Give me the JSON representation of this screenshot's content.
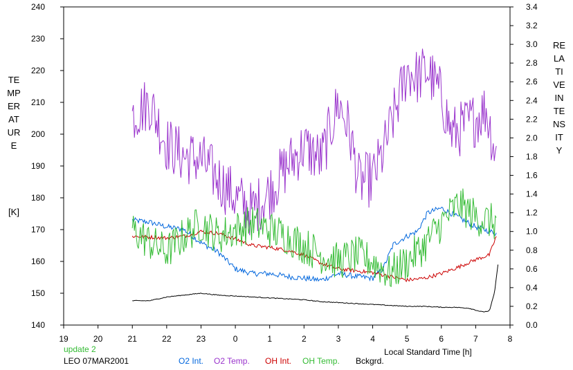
{
  "chart_data": {
    "type": "line",
    "xlabel": "Local Standard Time [h]",
    "x_ticks": [
      "19",
      "20",
      "21",
      "22",
      "23",
      "0",
      "1",
      "2",
      "3",
      "4",
      "5",
      "6",
      "7",
      "8"
    ],
    "xlim": [
      19,
      32
    ],
    "left_axis": {
      "label": "TEMPERATURE",
      "unit": "[K]",
      "lim": [
        140,
        240
      ],
      "ticks": [
        "140",
        "150",
        "160",
        "170",
        "180",
        "190",
        "200",
        "210",
        "220",
        "230",
        "240"
      ]
    },
    "right_axis": {
      "label": "RELATIVE INTENSITY",
      "lim": [
        0.0,
        3.4
      ],
      "ticks": [
        "0.0",
        "0.2",
        "0.4",
        "0.6",
        "0.8",
        "1.0",
        "1.2",
        "1.4",
        "1.6",
        "1.8",
        "2.0",
        "2.2",
        "2.4",
        "2.6",
        "2.8",
        "3.0",
        "3.2",
        "3.4"
      ]
    },
    "grid": false,
    "legend_position": "bottom",
    "status_text": "update 2",
    "station_text": "LEO 07MAR2001",
    "series": [
      {
        "name": "O2 Int.",
        "axis": "right",
        "color": "#0066dd",
        "noise": 0.03,
        "x": [
          21.0,
          21.5,
          22.0,
          22.5,
          23.0,
          23.5,
          24.0,
          24.5,
          25.0,
          25.5,
          26.0,
          26.5,
          27.0,
          27.5,
          28.0,
          28.3,
          28.6,
          29.0,
          29.3,
          29.6,
          30.0,
          30.5,
          31.0,
          31.6
        ],
        "y": [
          1.12,
          1.1,
          1.05,
          1.02,
          0.88,
          0.78,
          0.6,
          0.55,
          0.55,
          0.52,
          0.5,
          0.48,
          0.55,
          0.52,
          0.5,
          0.6,
          0.86,
          0.95,
          1.0,
          1.2,
          1.25,
          1.15,
          1.05,
          0.98
        ]
      },
      {
        "name": "O2 Temp.",
        "axis": "left",
        "color": "#9933cc",
        "noise": 9,
        "x": [
          21.0,
          21.5,
          22.0,
          22.5,
          23.0,
          23.5,
          24.0,
          24.5,
          25.0,
          25.5,
          26.0,
          26.5,
          27.0,
          27.3,
          27.6,
          28.0,
          28.3,
          28.6,
          29.0,
          29.3,
          29.6,
          30.0,
          30.3,
          30.6,
          31.0,
          31.3,
          31.6
        ],
        "y": [
          206,
          210,
          197,
          193,
          192,
          186,
          180,
          176,
          182,
          190,
          196,
          192,
          210,
          202,
          185,
          186,
          194,
          205,
          220,
          218,
          220,
          212,
          200,
          202,
          205,
          208,
          193
        ]
      },
      {
        "name": "OH Int.",
        "axis": "right",
        "color": "#cc0000",
        "noise": 0.02,
        "x": [
          21.0,
          21.5,
          22.0,
          22.5,
          23.0,
          23.5,
          24.0,
          24.5,
          25.0,
          25.5,
          26.0,
          26.5,
          27.0,
          27.5,
          28.0,
          28.5,
          29.0,
          29.5,
          30.0,
          30.5,
          31.0,
          31.4,
          31.6
        ],
        "y": [
          0.95,
          0.94,
          0.93,
          0.95,
          1.0,
          0.98,
          0.92,
          0.85,
          0.83,
          0.8,
          0.75,
          0.66,
          0.6,
          0.58,
          0.56,
          0.52,
          0.48,
          0.5,
          0.55,
          0.62,
          0.7,
          0.75,
          0.95
        ]
      },
      {
        "name": "OH Temp.",
        "axis": "left",
        "color": "#33bb33",
        "noise": 6,
        "x": [
          21.0,
          21.5,
          22.0,
          22.5,
          23.0,
          23.5,
          24.0,
          24.5,
          25.0,
          25.5,
          26.0,
          26.5,
          27.0,
          27.5,
          28.0,
          28.5,
          29.0,
          29.5,
          30.0,
          30.5,
          31.0,
          31.6
        ],
        "y": [
          170,
          166,
          163,
          168,
          172,
          168,
          170,
          172,
          170,
          168,
          165,
          162,
          160,
          162,
          160,
          156,
          160,
          165,
          172,
          178,
          174,
          172
        ]
      },
      {
        "name": "Bckgrd.",
        "axis": "right",
        "color": "#000000",
        "noise": 0.004,
        "x": [
          21.0,
          21.5,
          22.0,
          22.5,
          23.0,
          23.5,
          24.0,
          24.5,
          25.0,
          25.5,
          26.0,
          26.5,
          27.0,
          27.5,
          28.0,
          28.5,
          29.0,
          29.5,
          30.0,
          30.4,
          30.8,
          31.2,
          31.4,
          31.55,
          31.65
        ],
        "y": [
          0.26,
          0.26,
          0.3,
          0.32,
          0.34,
          0.32,
          0.31,
          0.3,
          0.29,
          0.28,
          0.27,
          0.25,
          0.24,
          0.23,
          0.22,
          0.21,
          0.2,
          0.2,
          0.19,
          0.19,
          0.18,
          0.14,
          0.15,
          0.35,
          0.65
        ]
      }
    ]
  }
}
